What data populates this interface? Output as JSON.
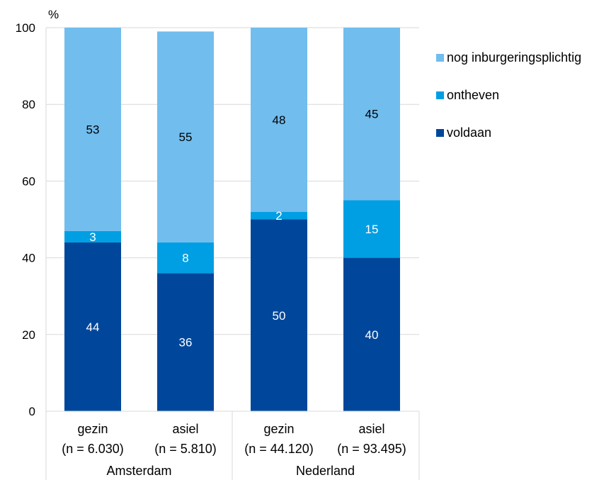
{
  "chart_data": {
    "type": "bar",
    "stacked": true,
    "ylabel": "%",
    "ylim": [
      0,
      100
    ],
    "yticks": [
      0,
      20,
      40,
      60,
      80,
      100
    ],
    "grid": true,
    "legend_position": "right",
    "categories": [
      {
        "label": "gezin",
        "n": "(n = 6.030)",
        "group": "Amsterdam"
      },
      {
        "label": "asiel",
        "n": "(n = 5.810)",
        "group": "Amsterdam"
      },
      {
        "label": "gezin",
        "n": "(n = 44.120)",
        "group": "Nederland"
      },
      {
        "label": "asiel",
        "n": "(n = 93.495)",
        "group": "Nederland"
      }
    ],
    "groups": [
      "Amsterdam",
      "Nederland"
    ],
    "series": [
      {
        "name": "voldaan",
        "values": [
          44,
          36,
          50,
          40
        ],
        "color": "#00479b",
        "label_color": "#ffffff"
      },
      {
        "name": "ontheven",
        "values": [
          3,
          8,
          2,
          15
        ],
        "color": "#009fe3",
        "label_color": "#ffffff"
      },
      {
        "name": "nog inburgeringsplichtig",
        "values": [
          53,
          55,
          48,
          45
        ],
        "color": "#71bdee",
        "label_color": "#000000"
      }
    ],
    "legend_order": [
      "nog inburgeringsplichtig",
      "ontheven",
      "voldaan"
    ]
  }
}
